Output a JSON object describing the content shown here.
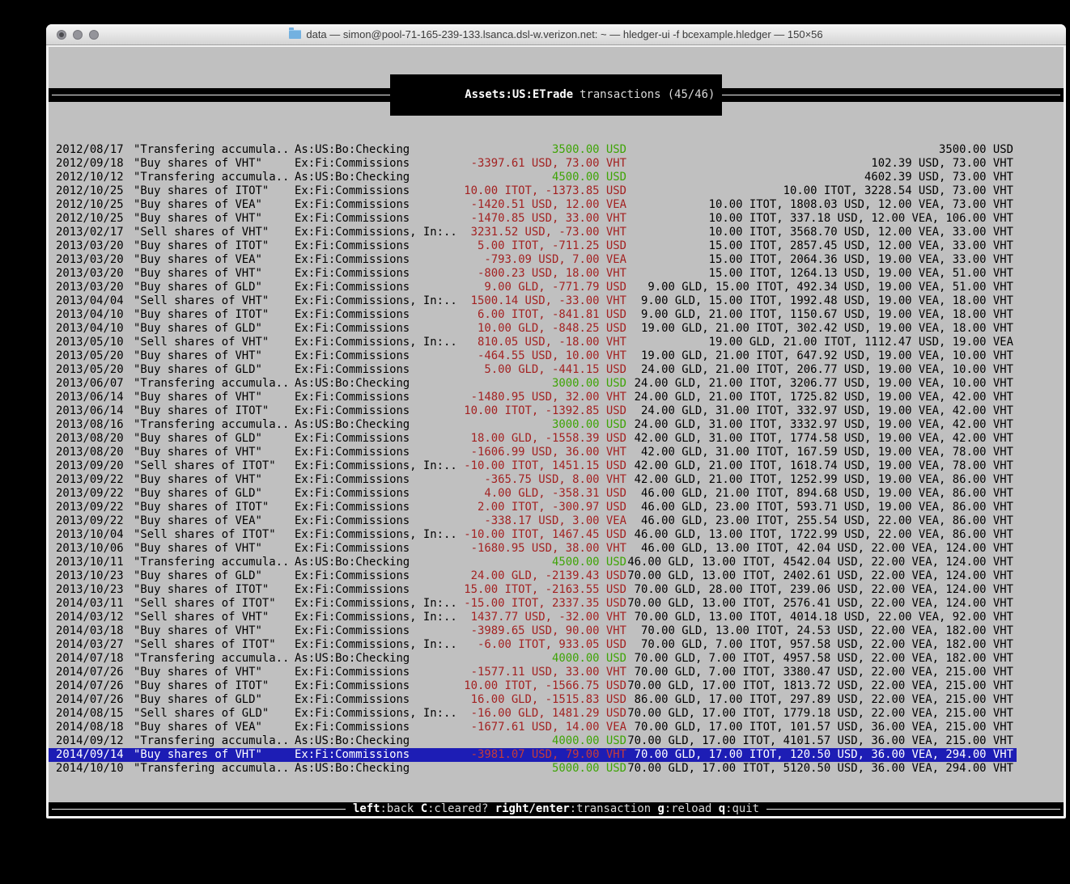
{
  "window": {
    "title": "data — simon@pool-71-165-239-133.lsanca.dsl-w.verizon.net: ~ — hledger-ui -f bcexample.hledger — 150×56",
    "traffic_lights": [
      "close",
      "minimize",
      "zoom"
    ]
  },
  "top_bar": {
    "account_title": "Assets:US:ETrade",
    "subtitle": "transactions (45/46)"
  },
  "bottom_bar": {
    "hints": [
      {
        "key": "left",
        "desc": ":back"
      },
      {
        "key": "C",
        "desc": ":cleared?"
      },
      {
        "key": "right/enter",
        "desc": ":transaction"
      },
      {
        "key": "g",
        "desc": ":reload"
      },
      {
        "key": "q",
        "desc": ":quit"
      }
    ]
  },
  "colors": {
    "screen_bg": "#c0c0c0",
    "bar_bg": "#000000",
    "bar_fg": "#f2f2f2",
    "amount_negative": "#a32222",
    "amount_positive": "#3ea406",
    "selection_bg": "#1d1db5",
    "selection_fg": "#ffffff"
  },
  "rows": [
    {
      "date": "2012/08/17",
      "description": "\"Transfering accumula..",
      "account": "As:US:Bo:Checking",
      "change": "3500.00 USD",
      "change_color": "green",
      "balance": "3500.00 USD",
      "selected": false
    },
    {
      "date": "2012/09/18",
      "description": "\"Buy shares of VHT\"",
      "account": "Ex:Fi:Commissions",
      "change": "-3397.61 USD, 73.00 VHT",
      "change_color": "red",
      "balance": "102.39 USD, 73.00 VHT",
      "selected": false
    },
    {
      "date": "2012/10/12",
      "description": "\"Transfering accumula..",
      "account": "As:US:Bo:Checking",
      "change": "4500.00 USD",
      "change_color": "green",
      "balance": "4602.39 USD, 73.00 VHT",
      "selected": false
    },
    {
      "date": "2012/10/25",
      "description": "\"Buy shares of ITOT\"",
      "account": "Ex:Fi:Commissions",
      "change": "10.00 ITOT, -1373.85 USD",
      "change_color": "red",
      "balance": "10.00 ITOT, 3228.54 USD, 73.00 VHT",
      "selected": false
    },
    {
      "date": "2012/10/25",
      "description": "\"Buy shares of VEA\"",
      "account": "Ex:Fi:Commissions",
      "change": "-1420.51 USD, 12.00 VEA",
      "change_color": "red",
      "balance": "10.00 ITOT, 1808.03 USD, 12.00 VEA, 73.00 VHT",
      "selected": false
    },
    {
      "date": "2012/10/25",
      "description": "\"Buy shares of VHT\"",
      "account": "Ex:Fi:Commissions",
      "change": "-1470.85 USD, 33.00 VHT",
      "change_color": "red",
      "balance": "10.00 ITOT, 337.18 USD, 12.00 VEA, 106.00 VHT",
      "selected": false
    },
    {
      "date": "2013/02/17",
      "description": "\"Sell shares of VHT\"",
      "account": "Ex:Fi:Commissions, In:..",
      "change": "3231.52 USD, -73.00 VHT",
      "change_color": "red",
      "balance": "10.00 ITOT, 3568.70 USD, 12.00 VEA, 33.00 VHT",
      "selected": false
    },
    {
      "date": "2013/03/20",
      "description": "\"Buy shares of ITOT\"",
      "account": "Ex:Fi:Commissions",
      "change": "5.00 ITOT, -711.25 USD",
      "change_color": "red",
      "balance": "15.00 ITOT, 2857.45 USD, 12.00 VEA, 33.00 VHT",
      "selected": false
    },
    {
      "date": "2013/03/20",
      "description": "\"Buy shares of VEA\"",
      "account": "Ex:Fi:Commissions",
      "change": "-793.09 USD, 7.00 VEA",
      "change_color": "red",
      "balance": "15.00 ITOT, 2064.36 USD, 19.00 VEA, 33.00 VHT",
      "selected": false
    },
    {
      "date": "2013/03/20",
      "description": "\"Buy shares of VHT\"",
      "account": "Ex:Fi:Commissions",
      "change": "-800.23 USD, 18.00 VHT",
      "change_color": "red",
      "balance": "15.00 ITOT, 1264.13 USD, 19.00 VEA, 51.00 VHT",
      "selected": false
    },
    {
      "date": "2013/03/20",
      "description": "\"Buy shares of GLD\"",
      "account": "Ex:Fi:Commissions",
      "change": "9.00 GLD, -771.79 USD",
      "change_color": "red",
      "balance": "9.00 GLD, 15.00 ITOT, 492.34 USD, 19.00 VEA, 51.00 VHT",
      "selected": false
    },
    {
      "date": "2013/04/04",
      "description": "\"Sell shares of VHT\"",
      "account": "Ex:Fi:Commissions, In:..",
      "change": "1500.14 USD, -33.00 VHT",
      "change_color": "red",
      "balance": "9.00 GLD, 15.00 ITOT, 1992.48 USD, 19.00 VEA, 18.00 VHT",
      "selected": false
    },
    {
      "date": "2013/04/10",
      "description": "\"Buy shares of ITOT\"",
      "account": "Ex:Fi:Commissions",
      "change": "6.00 ITOT, -841.81 USD",
      "change_color": "red",
      "balance": "9.00 GLD, 21.00 ITOT, 1150.67 USD, 19.00 VEA, 18.00 VHT",
      "selected": false
    },
    {
      "date": "2013/04/10",
      "description": "\"Buy shares of GLD\"",
      "account": "Ex:Fi:Commissions",
      "change": "10.00 GLD, -848.25 USD",
      "change_color": "red",
      "balance": "19.00 GLD, 21.00 ITOT, 302.42 USD, 19.00 VEA, 18.00 VHT",
      "selected": false
    },
    {
      "date": "2013/05/10",
      "description": "\"Sell shares of VHT\"",
      "account": "Ex:Fi:Commissions, In:..",
      "change": "810.05 USD, -18.00 VHT",
      "change_color": "red",
      "balance": "19.00 GLD, 21.00 ITOT, 1112.47 USD, 19.00 VEA",
      "selected": false
    },
    {
      "date": "2013/05/20",
      "description": "\"Buy shares of VHT\"",
      "account": "Ex:Fi:Commissions",
      "change": "-464.55 USD, 10.00 VHT",
      "change_color": "red",
      "balance": "19.00 GLD, 21.00 ITOT, 647.92 USD, 19.00 VEA, 10.00 VHT",
      "selected": false
    },
    {
      "date": "2013/05/20",
      "description": "\"Buy shares of GLD\"",
      "account": "Ex:Fi:Commissions",
      "change": "5.00 GLD, -441.15 USD",
      "change_color": "red",
      "balance": "24.00 GLD, 21.00 ITOT, 206.77 USD, 19.00 VEA, 10.00 VHT",
      "selected": false
    },
    {
      "date": "2013/06/07",
      "description": "\"Transfering accumula..",
      "account": "As:US:Bo:Checking",
      "change": "3000.00 USD",
      "change_color": "green",
      "balance": "24.00 GLD, 21.00 ITOT, 3206.77 USD, 19.00 VEA, 10.00 VHT",
      "selected": false
    },
    {
      "date": "2013/06/14",
      "description": "\"Buy shares of VHT\"",
      "account": "Ex:Fi:Commissions",
      "change": "-1480.95 USD, 32.00 VHT",
      "change_color": "red",
      "balance": "24.00 GLD, 21.00 ITOT, 1725.82 USD, 19.00 VEA, 42.00 VHT",
      "selected": false
    },
    {
      "date": "2013/06/14",
      "description": "\"Buy shares of ITOT\"",
      "account": "Ex:Fi:Commissions",
      "change": "10.00 ITOT, -1392.85 USD",
      "change_color": "red",
      "balance": "24.00 GLD, 31.00 ITOT, 332.97 USD, 19.00 VEA, 42.00 VHT",
      "selected": false
    },
    {
      "date": "2013/08/16",
      "description": "\"Transfering accumula..",
      "account": "As:US:Bo:Checking",
      "change": "3000.00 USD",
      "change_color": "green",
      "balance": "24.00 GLD, 31.00 ITOT, 3332.97 USD, 19.00 VEA, 42.00 VHT",
      "selected": false
    },
    {
      "date": "2013/08/20",
      "description": "\"Buy shares of GLD\"",
      "account": "Ex:Fi:Commissions",
      "change": "18.00 GLD, -1558.39 USD",
      "change_color": "red",
      "balance": "42.00 GLD, 31.00 ITOT, 1774.58 USD, 19.00 VEA, 42.00 VHT",
      "selected": false
    },
    {
      "date": "2013/08/20",
      "description": "\"Buy shares of VHT\"",
      "account": "Ex:Fi:Commissions",
      "change": "-1606.99 USD, 36.00 VHT",
      "change_color": "red",
      "balance": "42.00 GLD, 31.00 ITOT, 167.59 USD, 19.00 VEA, 78.00 VHT",
      "selected": false
    },
    {
      "date": "2013/09/20",
      "description": "\"Sell shares of ITOT\"",
      "account": "Ex:Fi:Commissions, In:..",
      "change": "-10.00 ITOT, 1451.15 USD",
      "change_color": "red",
      "balance": "42.00 GLD, 21.00 ITOT, 1618.74 USD, 19.00 VEA, 78.00 VHT",
      "selected": false
    },
    {
      "date": "2013/09/22",
      "description": "\"Buy shares of VHT\"",
      "account": "Ex:Fi:Commissions",
      "change": "-365.75 USD, 8.00 VHT",
      "change_color": "red",
      "balance": "42.00 GLD, 21.00 ITOT, 1252.99 USD, 19.00 VEA, 86.00 VHT",
      "selected": false
    },
    {
      "date": "2013/09/22",
      "description": "\"Buy shares of GLD\"",
      "account": "Ex:Fi:Commissions",
      "change": "4.00 GLD, -358.31 USD",
      "change_color": "red",
      "balance": "46.00 GLD, 21.00 ITOT, 894.68 USD, 19.00 VEA, 86.00 VHT",
      "selected": false
    },
    {
      "date": "2013/09/22",
      "description": "\"Buy shares of ITOT\"",
      "account": "Ex:Fi:Commissions",
      "change": "2.00 ITOT, -300.97 USD",
      "change_color": "red",
      "balance": "46.00 GLD, 23.00 ITOT, 593.71 USD, 19.00 VEA, 86.00 VHT",
      "selected": false
    },
    {
      "date": "2013/09/22",
      "description": "\"Buy shares of VEA\"",
      "account": "Ex:Fi:Commissions",
      "change": "-338.17 USD, 3.00 VEA",
      "change_color": "red",
      "balance": "46.00 GLD, 23.00 ITOT, 255.54 USD, 22.00 VEA, 86.00 VHT",
      "selected": false
    },
    {
      "date": "2013/10/04",
      "description": "\"Sell shares of ITOT\"",
      "account": "Ex:Fi:Commissions, In:..",
      "change": "-10.00 ITOT, 1467.45 USD",
      "change_color": "red",
      "balance": "46.00 GLD, 13.00 ITOT, 1722.99 USD, 22.00 VEA, 86.00 VHT",
      "selected": false
    },
    {
      "date": "2013/10/06",
      "description": "\"Buy shares of VHT\"",
      "account": "Ex:Fi:Commissions",
      "change": "-1680.95 USD, 38.00 VHT",
      "change_color": "red",
      "balance": "46.00 GLD, 13.00 ITOT, 42.04 USD, 22.00 VEA, 124.00 VHT",
      "selected": false
    },
    {
      "date": "2013/10/11",
      "description": "\"Transfering accumula..",
      "account": "As:US:Bo:Checking",
      "change": "4500.00 USD",
      "change_color": "green",
      "balance": "46.00 GLD, 13.00 ITOT, 4542.04 USD, 22.00 VEA, 124.00 VHT",
      "selected": false
    },
    {
      "date": "2013/10/23",
      "description": "\"Buy shares of GLD\"",
      "account": "Ex:Fi:Commissions",
      "change": "24.00 GLD, -2139.43 USD",
      "change_color": "red",
      "balance": "70.00 GLD, 13.00 ITOT, 2402.61 USD, 22.00 VEA, 124.00 VHT",
      "selected": false
    },
    {
      "date": "2013/10/23",
      "description": "\"Buy shares of ITOT\"",
      "account": "Ex:Fi:Commissions",
      "change": "15.00 ITOT, -2163.55 USD",
      "change_color": "red",
      "balance": "70.00 GLD, 28.00 ITOT, 239.06 USD, 22.00 VEA, 124.00 VHT",
      "selected": false
    },
    {
      "date": "2014/03/11",
      "description": "\"Sell shares of ITOT\"",
      "account": "Ex:Fi:Commissions, In:..",
      "change": "-15.00 ITOT, 2337.35 USD",
      "change_color": "red",
      "balance": "70.00 GLD, 13.00 ITOT, 2576.41 USD, 22.00 VEA, 124.00 VHT",
      "selected": false
    },
    {
      "date": "2014/03/12",
      "description": "\"Sell shares of VHT\"",
      "account": "Ex:Fi:Commissions, In:..",
      "change": "1437.77 USD, -32.00 VHT",
      "change_color": "red",
      "balance": "70.00 GLD, 13.00 ITOT, 4014.18 USD, 22.00 VEA, 92.00 VHT",
      "selected": false
    },
    {
      "date": "2014/03/18",
      "description": "\"Buy shares of VHT\"",
      "account": "Ex:Fi:Commissions",
      "change": "-3989.65 USD, 90.00 VHT",
      "change_color": "red",
      "balance": "70.00 GLD, 13.00 ITOT, 24.53 USD, 22.00 VEA, 182.00 VHT",
      "selected": false
    },
    {
      "date": "2014/03/27",
      "description": "\"Sell shares of ITOT\"",
      "account": "Ex:Fi:Commissions, In:..",
      "change": "-6.00 ITOT, 933.05 USD",
      "change_color": "red",
      "balance": "70.00 GLD, 7.00 ITOT, 957.58 USD, 22.00 VEA, 182.00 VHT",
      "selected": false
    },
    {
      "date": "2014/07/18",
      "description": "\"Transfering accumula..",
      "account": "As:US:Bo:Checking",
      "change": "4000.00 USD",
      "change_color": "green",
      "balance": "70.00 GLD, 7.00 ITOT, 4957.58 USD, 22.00 VEA, 182.00 VHT",
      "selected": false
    },
    {
      "date": "2014/07/26",
      "description": "\"Buy shares of VHT\"",
      "account": "Ex:Fi:Commissions",
      "change": "-1577.11 USD, 33.00 VHT",
      "change_color": "red",
      "balance": "70.00 GLD, 7.00 ITOT, 3380.47 USD, 22.00 VEA, 215.00 VHT",
      "selected": false
    },
    {
      "date": "2014/07/26",
      "description": "\"Buy shares of ITOT\"",
      "account": "Ex:Fi:Commissions",
      "change": "10.00 ITOT, -1566.75 USD",
      "change_color": "red",
      "balance": "70.00 GLD, 17.00 ITOT, 1813.72 USD, 22.00 VEA, 215.00 VHT",
      "selected": false
    },
    {
      "date": "2014/07/26",
      "description": "\"Buy shares of GLD\"",
      "account": "Ex:Fi:Commissions",
      "change": "16.00 GLD, -1515.83 USD",
      "change_color": "red",
      "balance": "86.00 GLD, 17.00 ITOT, 297.89 USD, 22.00 VEA, 215.00 VHT",
      "selected": false
    },
    {
      "date": "2014/08/15",
      "description": "\"Sell shares of GLD\"",
      "account": "Ex:Fi:Commissions, In:..",
      "change": "-16.00 GLD, 1481.29 USD",
      "change_color": "red",
      "balance": "70.00 GLD, 17.00 ITOT, 1779.18 USD, 22.00 VEA, 215.00 VHT",
      "selected": false
    },
    {
      "date": "2014/08/18",
      "description": "\"Buy shares of VEA\"",
      "account": "Ex:Fi:Commissions",
      "change": "-1677.61 USD, 14.00 VEA",
      "change_color": "red",
      "balance": "70.00 GLD, 17.00 ITOT, 101.57 USD, 36.00 VEA, 215.00 VHT",
      "selected": false
    },
    {
      "date": "2014/09/12",
      "description": "\"Transfering accumula..",
      "account": "As:US:Bo:Checking",
      "change": "4000.00 USD",
      "change_color": "green",
      "balance": "70.00 GLD, 17.00 ITOT, 4101.57 USD, 36.00 VEA, 215.00 VHT",
      "selected": false
    },
    {
      "date": "2014/09/14",
      "description": "\"Buy shares of VHT\"",
      "account": "Ex:Fi:Commissions",
      "change": "-3981.07 USD, 79.00 VHT",
      "change_color": "red",
      "balance": "70.00 GLD, 17.00 ITOT, 120.50 USD, 36.00 VEA, 294.00 VHT",
      "selected": true
    },
    {
      "date": "2014/10/10",
      "description": "\"Transfering accumula..",
      "account": "As:US:Bo:Checking",
      "change": "5000.00 USD",
      "change_color": "green",
      "balance": "70.00 GLD, 17.00 ITOT, 5120.50 USD, 36.00 VEA, 294.00 VHT",
      "selected": false
    }
  ]
}
